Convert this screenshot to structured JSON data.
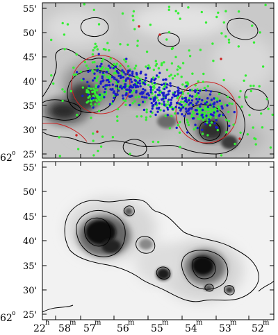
{
  "dec_label": {
    "deg": "62",
    "sup": "o"
  },
  "top_panel": {
    "dec_ticks": [
      "55'",
      "50'",
      "45'",
      "40'",
      "35'",
      "30'",
      "25'"
    ]
  },
  "bottom_panel": {
    "dec_ticks": [
      "55'",
      "50'",
      "45'",
      "40'",
      "35'",
      "30'",
      "25'"
    ]
  },
  "ra_axis": {
    "labels": [
      {
        "main": "22",
        "sup": "h"
      },
      {
        "main": "58",
        "sup": "m"
      },
      {
        "main": "57",
        "sup": "m"
      },
      {
        "main": "56",
        "sup": "m"
      },
      {
        "main": "55",
        "sup": "m"
      },
      {
        "main": "54",
        "sup": "m"
      },
      {
        "main": "53",
        "sup": "m"
      },
      {
        "main": "52",
        "sup": "m"
      }
    ]
  },
  "colors": {
    "green_sources": "#33ee33",
    "blue_sources": "#1a1acc",
    "red_circles": "#cc2020",
    "contour": "#000000"
  }
}
